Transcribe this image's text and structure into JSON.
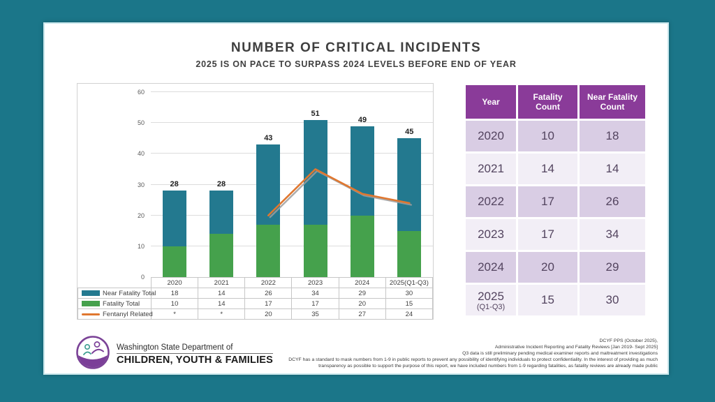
{
  "page": {
    "title": "NUMBER OF CRITICAL INCIDENTS",
    "subtitle": "2025 IS ON PACE TO SURPASS 2024 LEVELS BEFORE END OF YEAR"
  },
  "colors": {
    "background_teal": "#1b7689",
    "bar_near_fatality": "#23798f",
    "bar_fatality": "#45a14c",
    "line_fentanyl": "#e0772f",
    "line_shadow": "#9c9c9c",
    "table_header_purple": "#8a3b99",
    "row_dark": "#d9cde4",
    "row_light": "#f2eef6"
  },
  "chart_data": {
    "type": "bar",
    "subtype": "stacked-bars-with-line",
    "categories": [
      "2020",
      "2021",
      "2022",
      "2023",
      "2024",
      "2025(Q1-Q3)"
    ],
    "series": [
      {
        "name": "Near Fatality Total",
        "type": "bar",
        "color": "#23798f",
        "values": [
          "18",
          "14",
          "26",
          "34",
          "29",
          "30"
        ]
      },
      {
        "name": "Fatality Total",
        "type": "bar",
        "color": "#45a14c",
        "values": [
          "10",
          "14",
          "17",
          "17",
          "20",
          "15"
        ]
      },
      {
        "name": "Fentanyl Related",
        "type": "line",
        "color": "#e0772f",
        "values": [
          "*",
          "*",
          "20",
          "35",
          "27",
          "24"
        ]
      }
    ],
    "totals": [
      "28",
      "28",
      "43",
      "51",
      "49",
      "45"
    ],
    "title": "NUMBER OF CRITICAL INCIDENTS",
    "xlabel": "",
    "ylabel": "",
    "ylim": [
      0,
      60
    ],
    "yticks": [
      0,
      10,
      20,
      30,
      40,
      50,
      60
    ],
    "grid": true,
    "legend_position": "data-table-left"
  },
  "side_table": {
    "headers": [
      "Year",
      "Fatality Count",
      "Near Fatality Count"
    ],
    "rows": [
      {
        "year": "2020",
        "year_sub": "",
        "fatality": "10",
        "near_fatality": "18"
      },
      {
        "year": "2021",
        "year_sub": "",
        "fatality": "14",
        "near_fatality": "14"
      },
      {
        "year": "2022",
        "year_sub": "",
        "fatality": "17",
        "near_fatality": "26"
      },
      {
        "year": "2023",
        "year_sub": "",
        "fatality": "17",
        "near_fatality": "34"
      },
      {
        "year": "2024",
        "year_sub": "",
        "fatality": "20",
        "near_fatality": "29"
      },
      {
        "year": "2025",
        "year_sub": "(Q1-Q3)",
        "fatality": "15",
        "near_fatality": "30"
      }
    ]
  },
  "logo": {
    "icon": "dcyf-logo-icon",
    "line1": "Washington State Department of",
    "line2": "CHILDREN, YOUTH & FAMILIES"
  },
  "footnotes": [
    "DCYF PPS (October 2025),",
    "Administrative Incident Reporting and Fatality Reviews [Jan 2019- Sept 2025]",
    "Q3 data is still preliminary pending medical examiner reports and maltreatment investigations",
    "DCYF has a standard to mask numbers from 1-9 in public reports to prevent any possibility of identifying individuals to protect confidentiality.  In the interest of providing as much",
    "transparency as possible to support the purpose of this report, we have included numbers from 1-9 regarding fatalities, as fatality reviews are already made public"
  ]
}
